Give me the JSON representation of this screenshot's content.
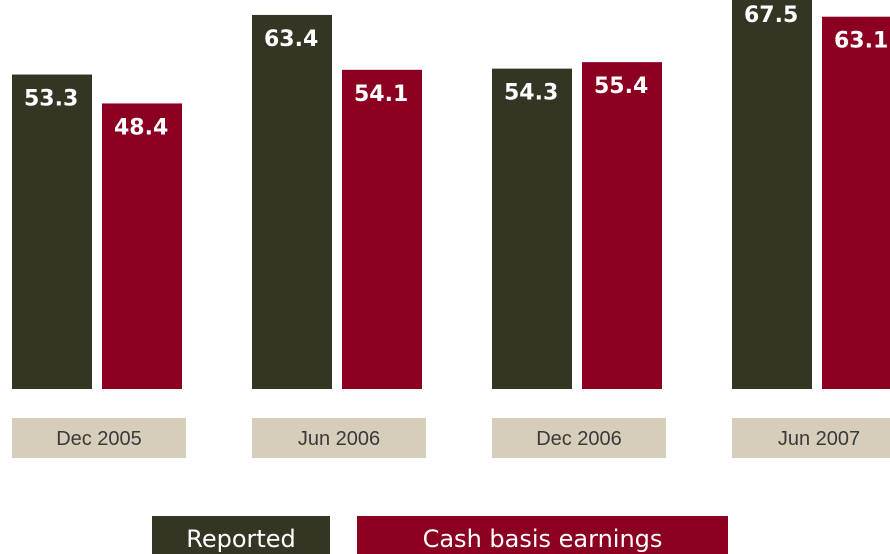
{
  "chart_data": {
    "type": "bar",
    "categories": [
      "Dec 2005",
      "Jun 2006",
      "Dec 2006",
      "Jun 2007"
    ],
    "series": [
      {
        "name": "Reported",
        "values": [
          53.3,
          63.4,
          54.3,
          67.5
        ]
      },
      {
        "name": "Cash basis earnings",
        "values": [
          48.4,
          54.1,
          55.4,
          63.1
        ]
      }
    ],
    "value_labels": [
      [
        "53.3",
        "63.4",
        "54.3",
        "67.5"
      ],
      [
        "48.4",
        "54.1",
        "55.4",
        "63.1"
      ]
    ],
    "title": "",
    "xlabel": "",
    "ylabel": "",
    "grid": false,
    "legend_position": "bottom"
  },
  "colors": {
    "reported": "#353524",
    "cash_basis": "#8b0020",
    "category_box": "#d6cdbb",
    "label_text": "#ffffff"
  }
}
